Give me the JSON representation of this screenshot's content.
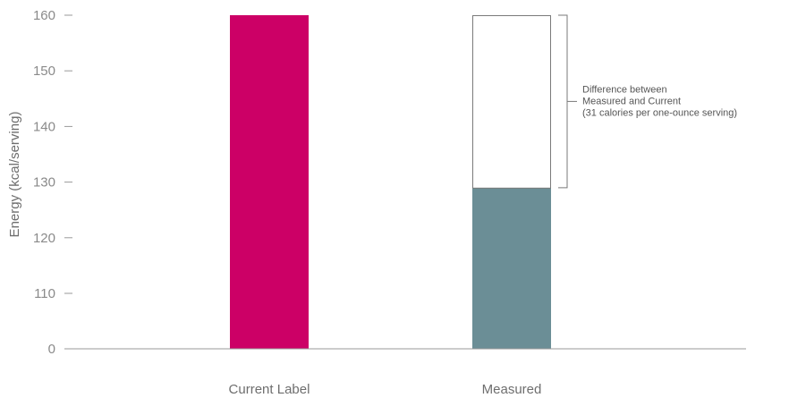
{
  "chart_data": {
    "type": "bar",
    "ylabel": "Energy (kcal/serving)",
    "categories": [
      "Current Label",
      "Measured"
    ],
    "values": [
      160,
      129
    ],
    "y_ticks": [
      "160",
      "150",
      "140",
      "130",
      "120",
      "110",
      "0"
    ],
    "axis_break": "y-axis jumps from 0 to 110",
    "grid": false,
    "annotation": {
      "lines": [
        "Difference between",
        "Measured and Current",
        "(31 calories per one-ounce serving)"
      ],
      "from_value": 160,
      "to_value": 129,
      "category": "Measured"
    },
    "colors": {
      "current": "#cc0066",
      "measured": "#6b8e96",
      "difference_fill": "#ffffff",
      "outline": "#7a7a7a"
    }
  }
}
